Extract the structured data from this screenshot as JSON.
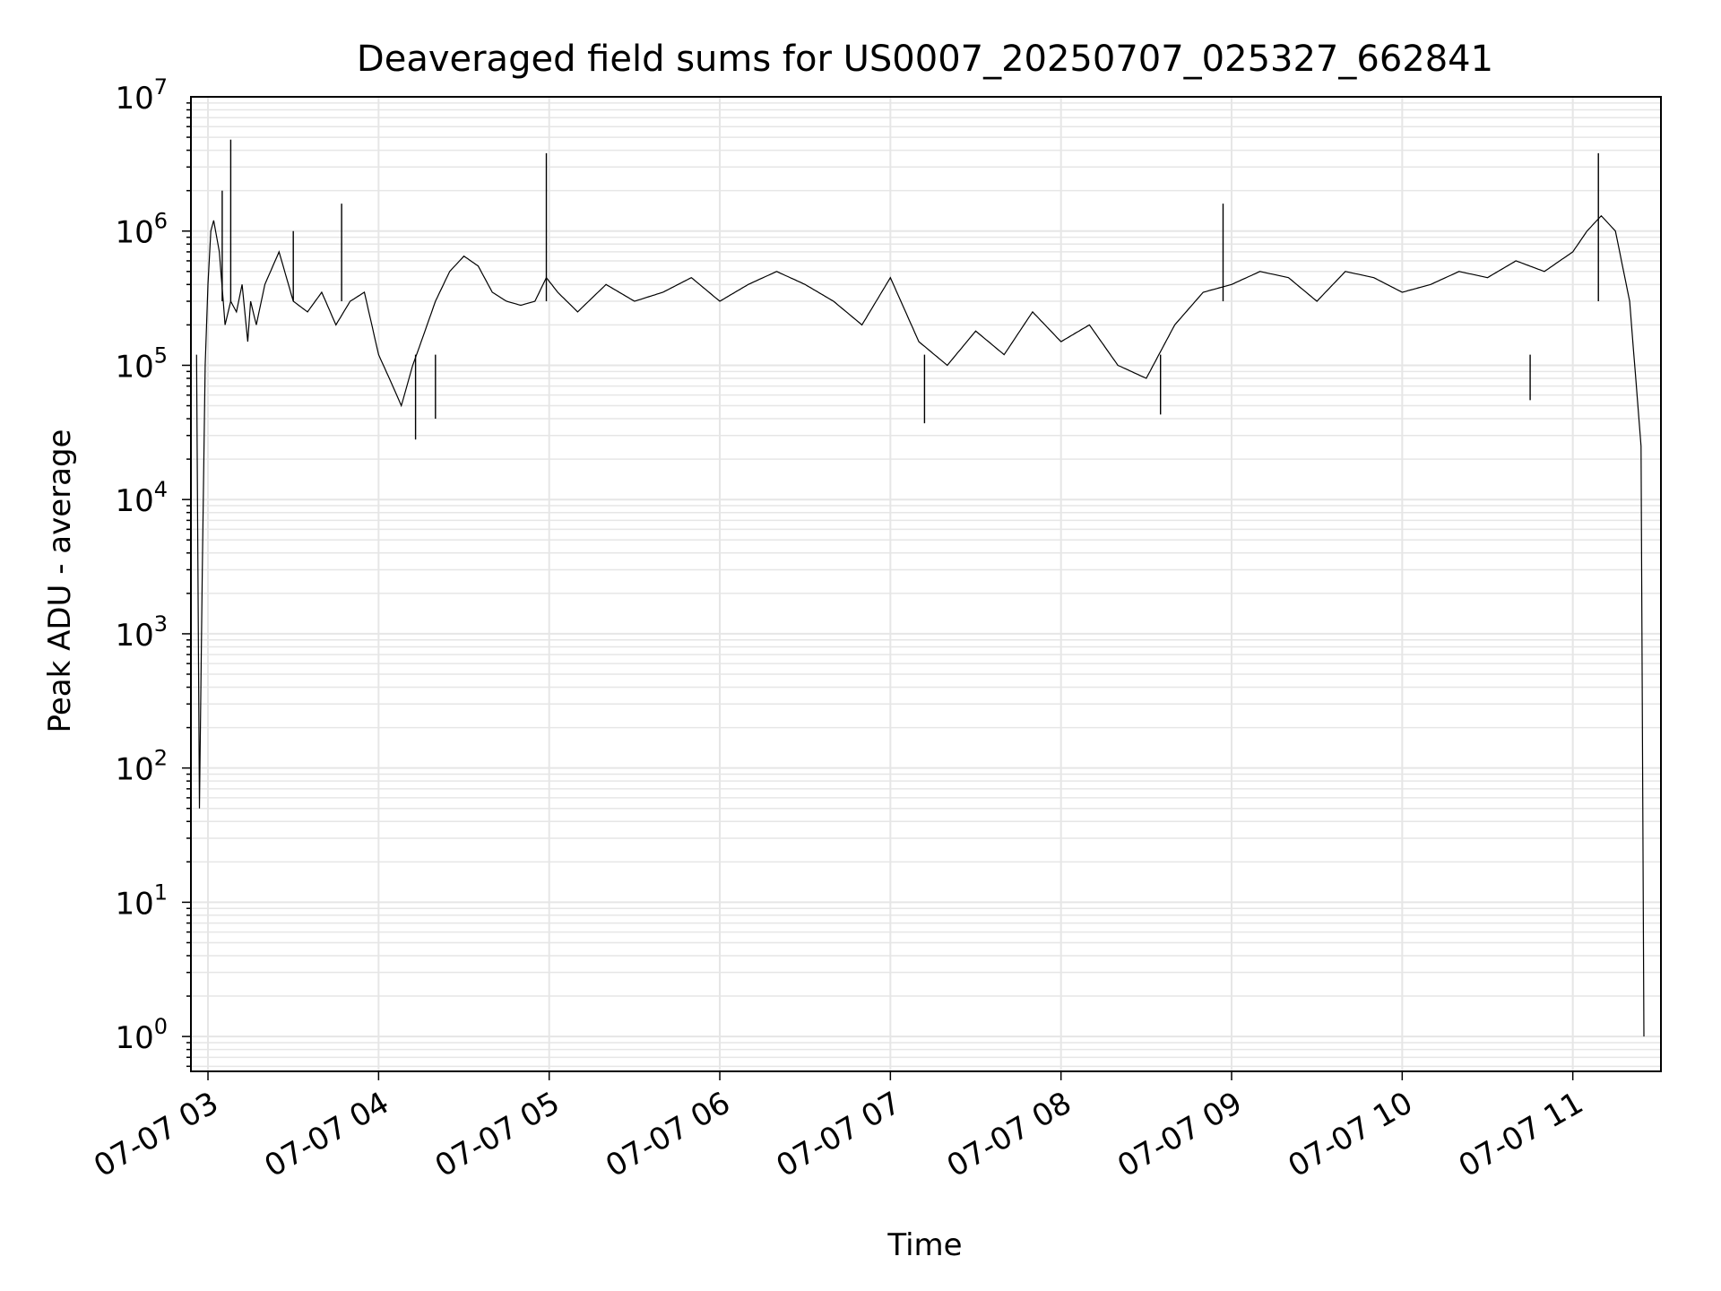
{
  "chart_data": {
    "type": "line",
    "title": "Deaveraged field sums for US0007_20250707_025327_662841",
    "xlabel": "Time",
    "ylabel": "Peak ADU - average",
    "yscale": "log",
    "ylim": [
      0.55,
      10000000
    ],
    "xlim": [
      "2025-07-07 02:54",
      "2025-07-07 11:31"
    ],
    "grid": true,
    "line_color": "#000000",
    "grid_color": "#e6e6e6",
    "x_ticks": [
      {
        "t": "2025-07-07 03:00",
        "label": "07-07 03"
      },
      {
        "t": "2025-07-07 04:00",
        "label": "07-07 04"
      },
      {
        "t": "2025-07-07 05:00",
        "label": "07-07 05"
      },
      {
        "t": "2025-07-07 06:00",
        "label": "07-07 06"
      },
      {
        "t": "2025-07-07 07:00",
        "label": "07-07 07"
      },
      {
        "t": "2025-07-07 08:00",
        "label": "07-07 08"
      },
      {
        "t": "2025-07-07 09:00",
        "label": "07-07 09"
      },
      {
        "t": "2025-07-07 10:00",
        "label": "07-07 10"
      },
      {
        "t": "2025-07-07 11:00",
        "label": "07-07 11"
      }
    ],
    "y_ticks": [
      {
        "value": 1,
        "base": "10",
        "exp": "0"
      },
      {
        "value": 10,
        "base": "10",
        "exp": "1"
      },
      {
        "value": 100,
        "base": "10",
        "exp": "2"
      },
      {
        "value": 1000,
        "base": "10",
        "exp": "3"
      },
      {
        "value": 10000,
        "base": "10",
        "exp": "4"
      },
      {
        "value": 100000,
        "base": "10",
        "exp": "5"
      },
      {
        "value": 1000000,
        "base": "10",
        "exp": "6"
      },
      {
        "value": 10000000,
        "base": "10",
        "exp": "7"
      }
    ],
    "series": [
      {
        "x": [
          "2025-07-07 02:56",
          "2025-07-07 02:57",
          "2025-07-07 02:58",
          "2025-07-07 02:59",
          "2025-07-07 03:00",
          "2025-07-07 03:01",
          "2025-07-07 03:02",
          "2025-07-07 03:04",
          "2025-07-07 03:06",
          "2025-07-07 03:08",
          "2025-07-07 03:10",
          "2025-07-07 03:12",
          "2025-07-07 03:14",
          "2025-07-07 03:15",
          "2025-07-07 03:17",
          "2025-07-07 03:20",
          "2025-07-07 03:25",
          "2025-07-07 03:30",
          "2025-07-07 03:35",
          "2025-07-07 03:40",
          "2025-07-07 03:45",
          "2025-07-07 03:50",
          "2025-07-07 03:55",
          "2025-07-07 04:00",
          "2025-07-07 04:05",
          "2025-07-07 04:08",
          "2025-07-07 04:12",
          "2025-07-07 04:15",
          "2025-07-07 04:20",
          "2025-07-07 04:25",
          "2025-07-07 04:30",
          "2025-07-07 04:35",
          "2025-07-07 04:40",
          "2025-07-07 04:45",
          "2025-07-07 04:50",
          "2025-07-07 04:55",
          "2025-07-07 04:59",
          "2025-07-07 05:03",
          "2025-07-07 05:10",
          "2025-07-07 05:20",
          "2025-07-07 05:30",
          "2025-07-07 05:40",
          "2025-07-07 05:50",
          "2025-07-07 06:00",
          "2025-07-07 06:10",
          "2025-07-07 06:20",
          "2025-07-07 06:30",
          "2025-07-07 06:40",
          "2025-07-07 06:50",
          "2025-07-07 07:00",
          "2025-07-07 07:10",
          "2025-07-07 07:20",
          "2025-07-07 07:30",
          "2025-07-07 07:40",
          "2025-07-07 07:50",
          "2025-07-07 08:00",
          "2025-07-07 08:10",
          "2025-07-07 08:20",
          "2025-07-07 08:30",
          "2025-07-07 08:40",
          "2025-07-07 08:50",
          "2025-07-07 09:00",
          "2025-07-07 09:10",
          "2025-07-07 09:20",
          "2025-07-07 09:30",
          "2025-07-07 09:40",
          "2025-07-07 09:50",
          "2025-07-07 10:00",
          "2025-07-07 10:10",
          "2025-07-07 10:20",
          "2025-07-07 10:30",
          "2025-07-07 10:40",
          "2025-07-07 10:50",
          "2025-07-07 11:00",
          "2025-07-07 11:05",
          "2025-07-07 11:10",
          "2025-07-07 11:15",
          "2025-07-07 11:20",
          "2025-07-07 11:24",
          "2025-07-07 11:25"
        ],
        "y": [
          120000,
          50,
          3000,
          100000,
          400000,
          1000000,
          1200000,
          700000,
          200000,
          300000,
          250000,
          400000,
          150000,
          300000,
          200000,
          400000,
          700000,
          300000,
          250000,
          350000,
          200000,
          300000,
          350000,
          120000,
          70000,
          50000,
          100000,
          150000,
          300000,
          500000,
          650000,
          550000,
          350000,
          300000,
          280000,
          300000,
          450000,
          350000,
          250000,
          400000,
          300000,
          350000,
          450000,
          300000,
          400000,
          500000,
          400000,
          300000,
          200000,
          450000,
          150000,
          100000,
          180000,
          120000,
          250000,
          150000,
          200000,
          100000,
          80000,
          200000,
          350000,
          400000,
          500000,
          450000,
          300000,
          500000,
          450000,
          350000,
          400000,
          500000,
          450000,
          600000,
          500000,
          700000,
          1000000,
          1300000,
          1000000,
          300000,
          25000,
          1
        ]
      }
    ],
    "spikes": [
      {
        "x": "2025-07-07 03:05",
        "y": 2000000
      },
      {
        "x": "2025-07-07 03:08",
        "y": 4800000
      },
      {
        "x": "2025-07-07 03:30",
        "y": 1000000
      },
      {
        "x": "2025-07-07 03:47",
        "y": 1600000
      },
      {
        "x": "2025-07-07 04:59",
        "y": 3800000
      },
      {
        "x": "2025-07-07 08:57",
        "y": 1600000
      },
      {
        "x": "2025-07-07 11:09",
        "y": 3800000
      }
    ],
    "dips": [
      {
        "x": "2025-07-07 04:13",
        "y": 28000
      },
      {
        "x": "2025-07-07 04:20",
        "y": 40000
      },
      {
        "x": "2025-07-07 07:12",
        "y": 37000
      },
      {
        "x": "2025-07-07 08:35",
        "y": 43000
      },
      {
        "x": "2025-07-07 10:45",
        "y": 55000
      }
    ]
  }
}
